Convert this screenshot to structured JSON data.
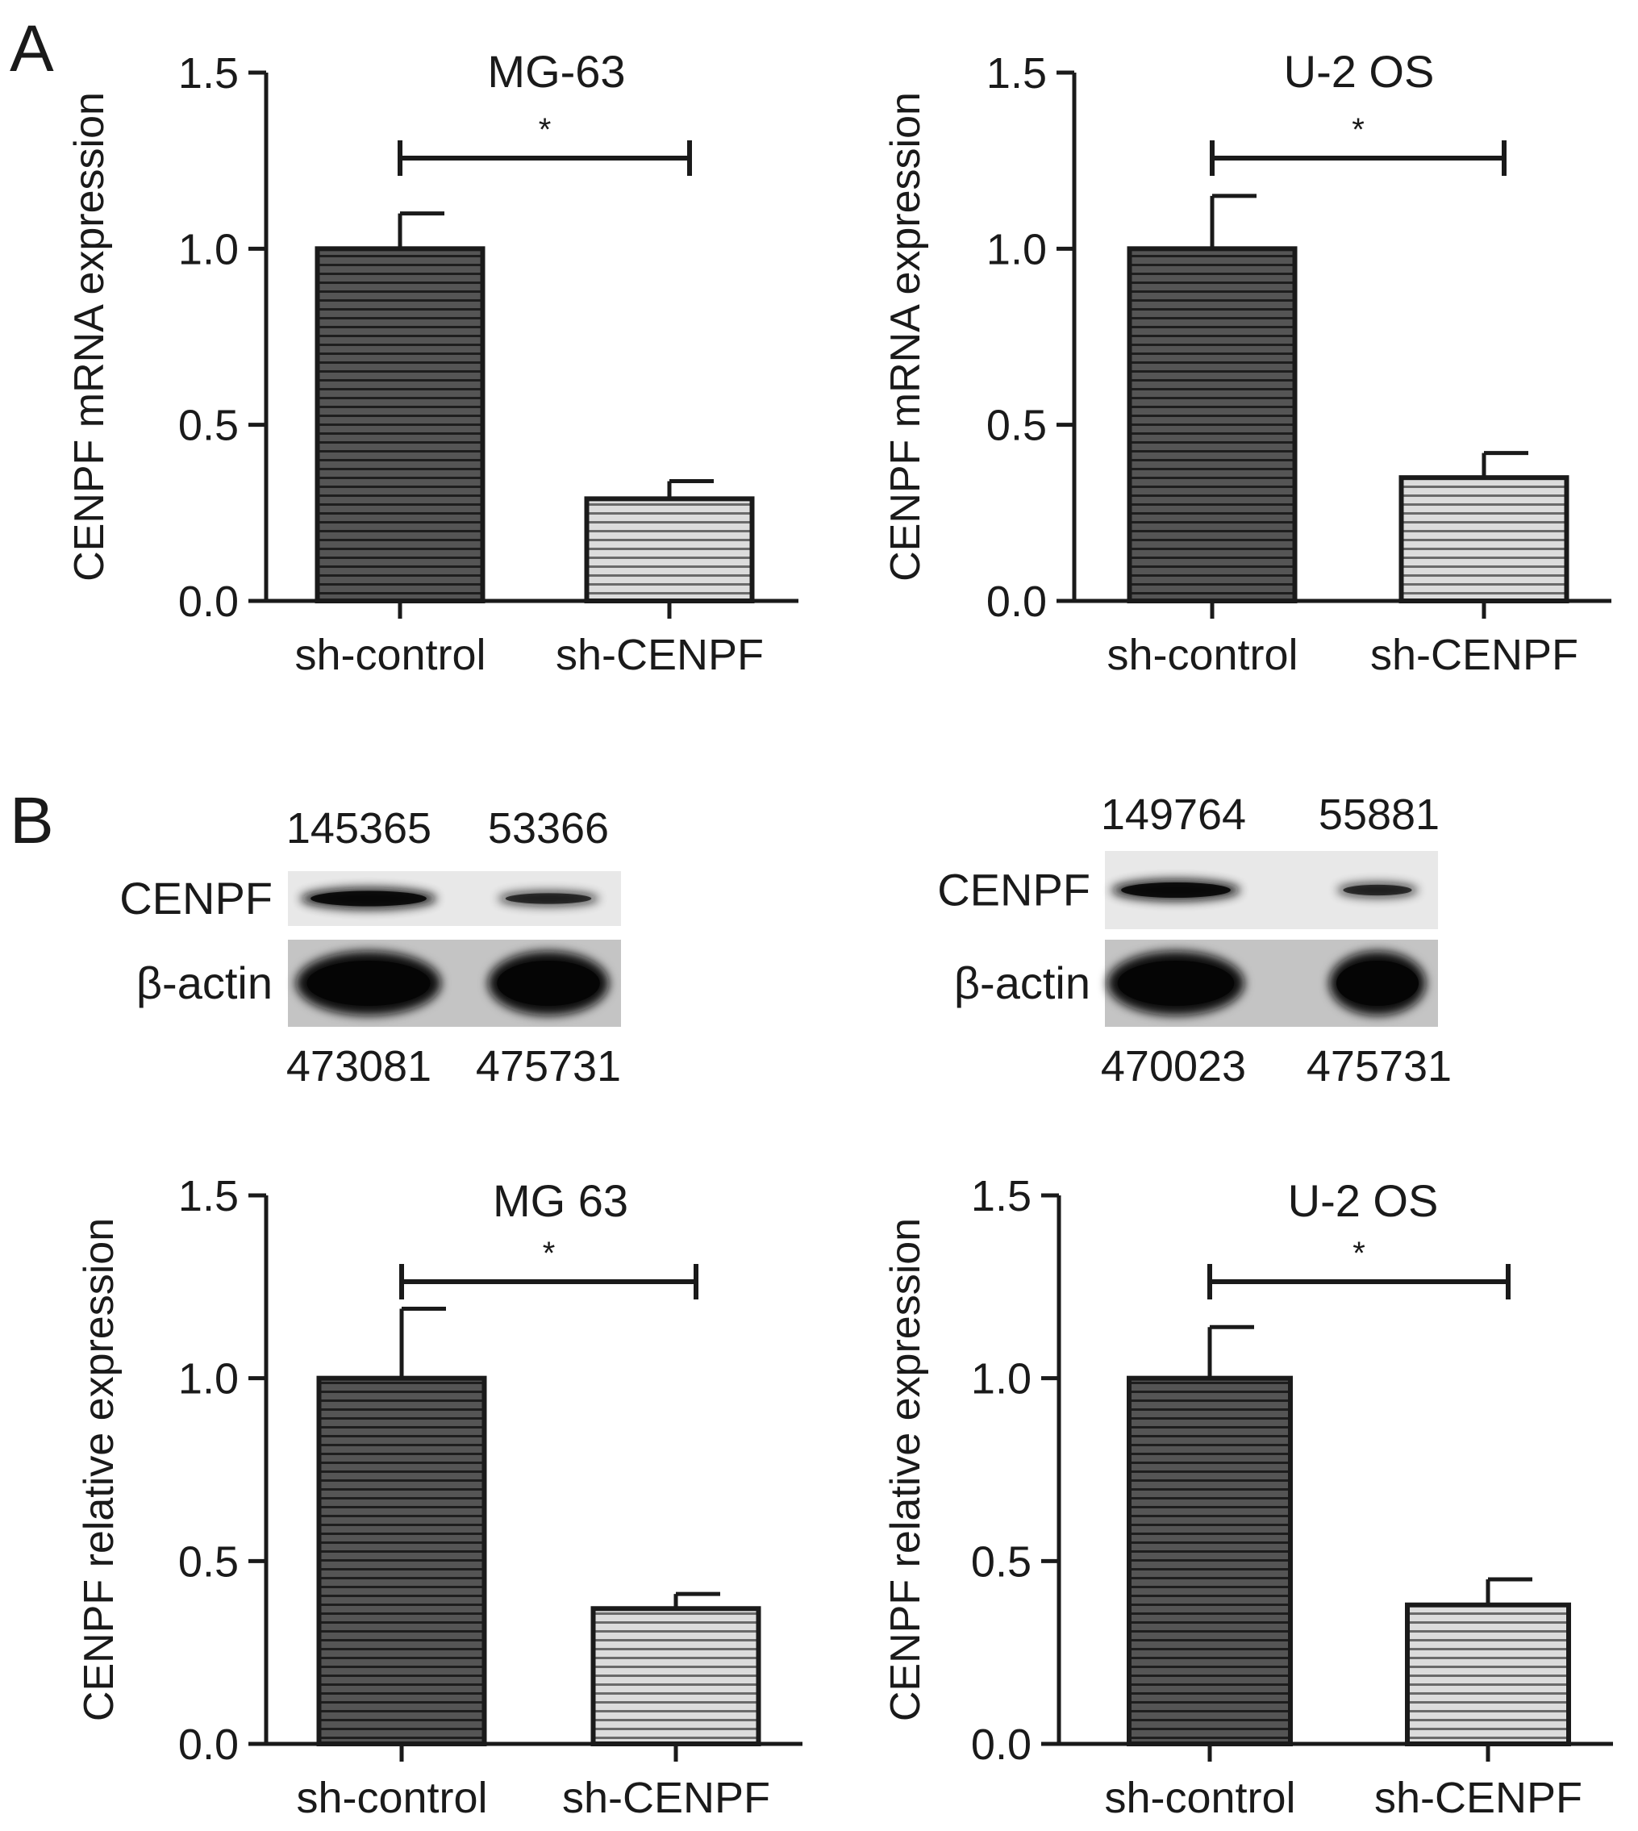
{
  "panel_labels": {
    "a": "A",
    "b": "B"
  },
  "colors": {
    "ink": "#1a1a1a",
    "dark_bar": "#555555",
    "light_bar": "#d6d6d6",
    "stripe": "#222222"
  },
  "chart_data": [
    {
      "type": "bar",
      "title": "MG-63",
      "ylabel": "CENPF mRNA expression",
      "xlabel": "",
      "categories": [
        "sh-control",
        "sh-CENPF"
      ],
      "values": [
        1.0,
        0.29
      ],
      "errors": [
        0.1,
        0.05
      ],
      "ylim": [
        0,
        1.5
      ],
      "yticks": [
        "0.0",
        "0.5",
        "1.0",
        "1.5"
      ],
      "significance": "*",
      "grid": false
    },
    {
      "type": "bar",
      "title": "U-2 OS",
      "ylabel": "CENPF mRNA expression",
      "xlabel": "",
      "categories": [
        "sh-control",
        "sh-CENPF"
      ],
      "values": [
        1.0,
        0.35
      ],
      "errors": [
        0.15,
        0.07
      ],
      "ylim": [
        0,
        1.5
      ],
      "yticks": [
        "0.0",
        "0.5",
        "1.0",
        "1.5"
      ],
      "significance": "*",
      "grid": false
    },
    {
      "type": "bar",
      "title": "MG 63",
      "ylabel": "CENPF relative expression",
      "xlabel": "",
      "categories": [
        "sh-control",
        "sh-CENPF"
      ],
      "values": [
        1.0,
        0.37
      ],
      "errors": [
        0.19,
        0.04
      ],
      "ylim": [
        0,
        1.5
      ],
      "yticks": [
        "0.0",
        "0.5",
        "1.0",
        "1.5"
      ],
      "significance": "*",
      "grid": false
    },
    {
      "type": "bar",
      "title": "U-2 OS",
      "ylabel": "CENPF relative expression",
      "xlabel": "",
      "categories": [
        "sh-control",
        "sh-CENPF"
      ],
      "values": [
        1.0,
        0.38
      ],
      "errors": [
        0.14,
        0.07
      ],
      "ylim": [
        0,
        1.5
      ],
      "yticks": [
        "0.0",
        "0.5",
        "1.0",
        "1.5"
      ],
      "significance": "*",
      "grid": false
    }
  ],
  "blots": [
    {
      "cell_line": "MG-63",
      "rows": [
        {
          "label": "CENPF",
          "band_strength": [
            0.8,
            0.45
          ]
        },
        {
          "label": "β-actin",
          "band_strength": [
            1.0,
            1.0
          ]
        }
      ],
      "top_values": [
        "145365",
        "53366"
      ],
      "bottom_values": [
        "473081",
        "475731"
      ]
    },
    {
      "cell_line": "U-2 OS",
      "rows": [
        {
          "label": "CENPF",
          "band_strength": [
            0.8,
            0.45
          ]
        },
        {
          "label": "β-actin",
          "band_strength": [
            1.0,
            1.0
          ]
        }
      ],
      "top_values": [
        "149764",
        "55881"
      ],
      "bottom_values": [
        "470023",
        "475731"
      ]
    }
  ]
}
